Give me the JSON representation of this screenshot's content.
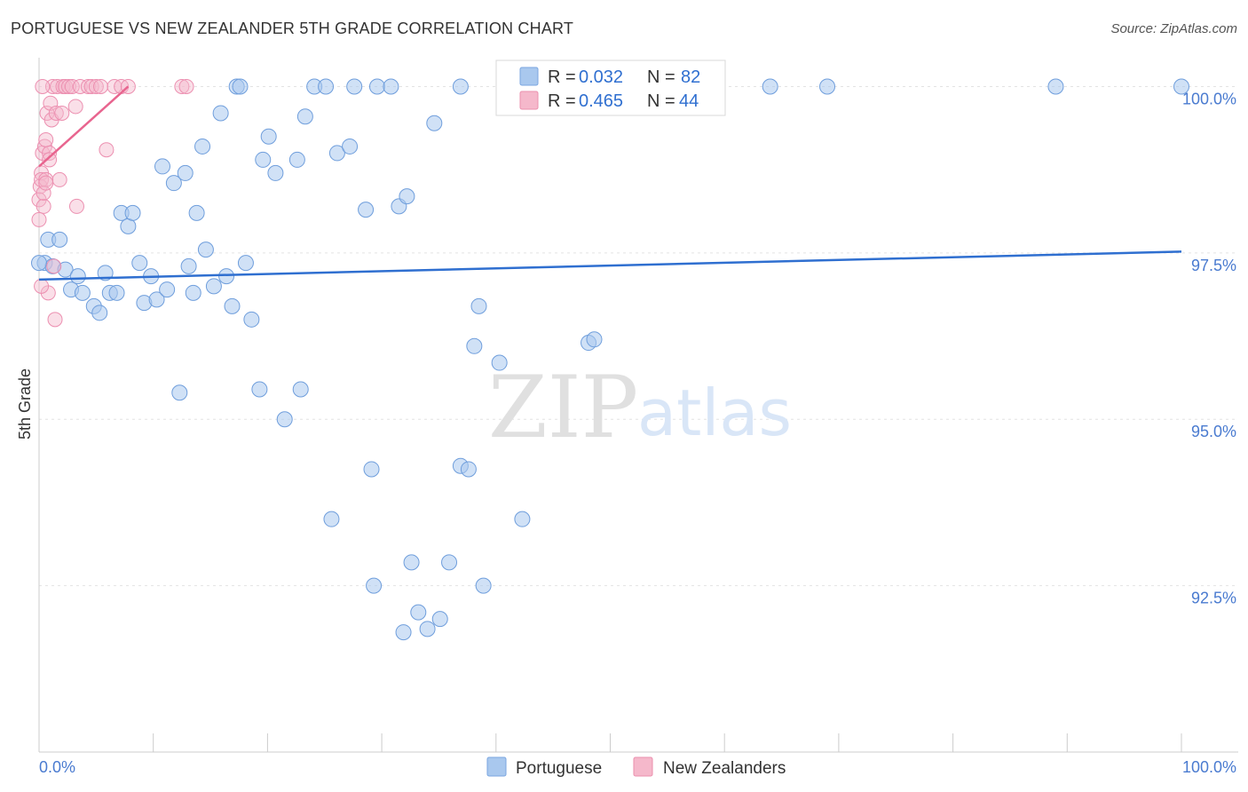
{
  "title": "PORTUGUESE VS NEW ZEALANDER 5TH GRADE CORRELATION CHART",
  "source": "Source: ZipAtlas.com",
  "watermark": {
    "zip": "ZIP",
    "atlas": "atlas"
  },
  "legend": {
    "rows": [
      {
        "r_label": "R = ",
        "r_value": "0.032",
        "n_label": "N = ",
        "n_value": "82"
      },
      {
        "r_label": "R = ",
        "r_value": "0.465",
        "n_label": "N = ",
        "n_value": "44"
      }
    ]
  },
  "chart_data": {
    "type": "scatter",
    "title": "PORTUGUESE VS NEW ZEALANDER 5TH GRADE CORRELATION CHART",
    "xlabel": "",
    "ylabel": "5th Grade",
    "xlim": [
      0,
      100
    ],
    "ylim": [
      90.0,
      100.3
    ],
    "x_tick_labels": [
      "0.0%",
      "100.0%"
    ],
    "y_ticks": [
      92.5,
      95.0,
      97.5,
      100.0
    ],
    "y_tick_labels": [
      "92.5%",
      "95.0%",
      "97.5%",
      "100.0%"
    ],
    "grid": true,
    "legend_position": "top-center",
    "colors": {
      "portuguese": "#a9c8ee",
      "portuguese_line": "#2f6fd0",
      "nz": "#f5b8cb",
      "nz_line": "#e8658f"
    },
    "series": [
      {
        "name": "Portuguese",
        "R": 0.032,
        "N": 82,
        "trend": {
          "x": [
            0,
            100
          ],
          "y": [
            97.1,
            97.52
          ]
        },
        "points": [
          [
            0.5,
            97.35
          ],
          [
            0.8,
            97.7
          ],
          [
            1.2,
            97.3
          ],
          [
            1.8,
            97.7
          ],
          [
            2.3,
            97.25
          ],
          [
            2.8,
            96.95
          ],
          [
            3.4,
            97.15
          ],
          [
            3.8,
            96.9
          ],
          [
            4.8,
            96.7
          ],
          [
            5.3,
            96.6
          ],
          [
            5.8,
            97.2
          ],
          [
            6.2,
            96.9
          ],
          [
            6.8,
            96.9
          ],
          [
            7.2,
            98.1
          ],
          [
            7.8,
            97.9
          ],
          [
            8.2,
            98.1
          ],
          [
            8.8,
            97.35
          ],
          [
            9.2,
            96.75
          ],
          [
            9.8,
            97.15
          ],
          [
            10.3,
            96.8
          ],
          [
            10.8,
            98.8
          ],
          [
            11.2,
            96.95
          ],
          [
            11.8,
            98.55
          ],
          [
            12.3,
            95.4
          ],
          [
            12.8,
            98.7
          ],
          [
            13.1,
            97.3
          ],
          [
            13.5,
            96.9
          ],
          [
            13.8,
            98.1
          ],
          [
            14.3,
            99.1
          ],
          [
            14.6,
            97.55
          ],
          [
            15.3,
            97.0
          ],
          [
            15.9,
            99.6
          ],
          [
            16.4,
            97.15
          ],
          [
            16.9,
            96.7
          ],
          [
            17.3,
            100.0
          ],
          [
            17.6,
            100.0
          ],
          [
            18.1,
            97.35
          ],
          [
            18.6,
            96.5
          ],
          [
            19.3,
            95.45
          ],
          [
            19.6,
            98.9
          ],
          [
            20.1,
            99.25
          ],
          [
            20.7,
            98.7
          ],
          [
            21.5,
            95.0
          ],
          [
            22.6,
            98.9
          ],
          [
            22.9,
            95.45
          ],
          [
            23.3,
            99.55
          ],
          [
            24.1,
            100.0
          ],
          [
            25.1,
            100.0
          ],
          [
            25.6,
            93.5
          ],
          [
            26.1,
            99.0
          ],
          [
            27.2,
            99.1
          ],
          [
            27.6,
            100.0
          ],
          [
            28.6,
            98.15
          ],
          [
            29.1,
            94.25
          ],
          [
            29.3,
            92.5
          ],
          [
            29.6,
            100.0
          ],
          [
            30.8,
            100.0
          ],
          [
            31.5,
            98.2
          ],
          [
            31.9,
            91.8
          ],
          [
            32.2,
            98.35
          ],
          [
            32.6,
            92.85
          ],
          [
            33.2,
            92.1
          ],
          [
            34.0,
            91.85
          ],
          [
            34.6,
            99.45
          ],
          [
            35.1,
            92.0
          ],
          [
            35.9,
            92.85
          ],
          [
            36.9,
            100.0
          ],
          [
            36.9,
            94.3
          ],
          [
            37.6,
            94.25
          ],
          [
            38.1,
            96.1
          ],
          [
            38.5,
            96.7
          ],
          [
            38.9,
            92.5
          ],
          [
            40.3,
            95.85
          ],
          [
            42.3,
            93.5
          ],
          [
            48.1,
            96.15
          ],
          [
            48.6,
            96.2
          ],
          [
            51.0,
            100.0
          ],
          [
            64.0,
            100.0
          ],
          [
            69.0,
            100.0
          ],
          [
            89.0,
            100.0
          ],
          [
            100.0,
            100.0
          ],
          [
            0.0,
            97.35
          ]
        ]
      },
      {
        "name": "New Zealanders",
        "R": 0.465,
        "N": 44,
        "trend": {
          "x": [
            0,
            7.8
          ],
          "y": [
            98.8,
            100.0
          ]
        },
        "points": [
          [
            0.0,
            98.3
          ],
          [
            0.1,
            98.5
          ],
          [
            0.2,
            98.7
          ],
          [
            0.2,
            98.6
          ],
          [
            0.3,
            99.0
          ],
          [
            0.4,
            98.2
          ],
          [
            0.5,
            99.1
          ],
          [
            0.6,
            99.2
          ],
          [
            0.6,
            98.6
          ],
          [
            0.7,
            99.6
          ],
          [
            0.8,
            96.9
          ],
          [
            0.9,
            99.0
          ],
          [
            1.0,
            99.75
          ],
          [
            1.1,
            99.5
          ],
          [
            1.2,
            100.0
          ],
          [
            1.3,
            97.3
          ],
          [
            1.4,
            96.5
          ],
          [
            1.5,
            99.6
          ],
          [
            1.6,
            100.0
          ],
          [
            1.8,
            98.6
          ],
          [
            2.0,
            99.6
          ],
          [
            2.1,
            100.0
          ],
          [
            2.3,
            100.0
          ],
          [
            2.6,
            100.0
          ],
          [
            2.9,
            100.0
          ],
          [
            3.2,
            99.7
          ],
          [
            3.3,
            98.2
          ],
          [
            3.6,
            100.0
          ],
          [
            4.3,
            100.0
          ],
          [
            4.6,
            100.0
          ],
          [
            5.0,
            100.0
          ],
          [
            5.4,
            100.0
          ],
          [
            5.9,
            99.05
          ],
          [
            6.6,
            100.0
          ],
          [
            7.2,
            100.0
          ],
          [
            7.8,
            100.0
          ],
          [
            0.3,
            100.0
          ],
          [
            0.4,
            98.4
          ],
          [
            0.6,
            98.55
          ],
          [
            12.5,
            100.0
          ],
          [
            12.9,
            100.0
          ],
          [
            0.2,
            97.0
          ],
          [
            0.0,
            98.0
          ],
          [
            0.9,
            98.9
          ]
        ]
      }
    ]
  }
}
